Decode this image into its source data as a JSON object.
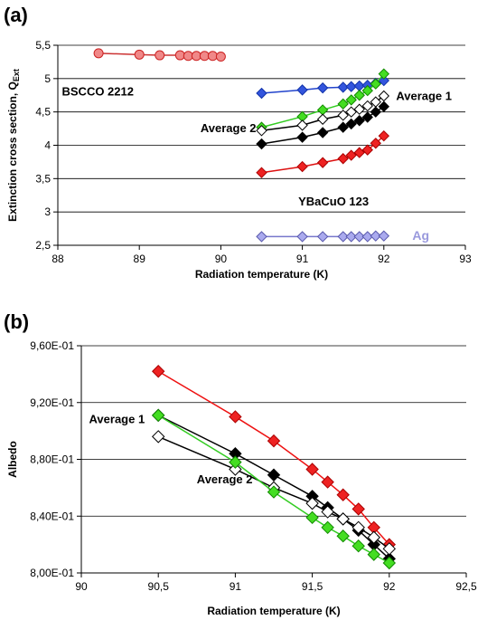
{
  "chart_data": [
    {
      "panel_label": "(a)",
      "type": "line",
      "xlabel": "Radiation temperature (K)",
      "ylabel": "Extinction cross section, Q",
      "ylabel_sub": "Ext",
      "xlim": [
        88,
        93
      ],
      "ylim": [
        2.5,
        5.5
      ],
      "xticks": [
        88,
        89,
        90,
        91,
        92,
        93
      ],
      "xtick_labels": [
        "88",
        "89",
        "90",
        "91",
        "92",
        "93"
      ],
      "yticks": [
        2.5,
        3,
        3.5,
        4,
        4.5,
        5,
        5.5
      ],
      "ytick_labels": [
        "2,5",
        "3",
        "3,5",
        "4",
        "4,5",
        "5",
        "5,5"
      ],
      "grid": "horizontal",
      "annotations": [
        {
          "text": "BSCCO 2212",
          "x": 88.05,
          "y": 4.75,
          "style": "annot"
        },
        {
          "text": "Average 1",
          "x": 92.15,
          "y": 4.68,
          "style": "annot"
        },
        {
          "text": "Average 2",
          "x": 89.75,
          "y": 4.2,
          "style": "annot"
        },
        {
          "text": "YBaCuO 123",
          "x": 90.95,
          "y": 3.1,
          "style": "annot"
        },
        {
          "text": "Ag",
          "x": 92.35,
          "y": 2.58,
          "style": "annot-ag"
        }
      ],
      "series": [
        {
          "marker": "circle",
          "fill": "#f08888",
          "stroke": "#cc2222",
          "line": "#cc3333",
          "x": [
            88.5,
            89.0,
            89.25,
            89.5,
            89.6,
            89.7,
            89.8,
            89.9,
            90.0
          ],
          "y": [
            5.38,
            5.36,
            5.35,
            5.35,
            5.34,
            5.34,
            5.34,
            5.34,
            5.33
          ]
        },
        {
          "marker": "diamond",
          "fill": "#3355dd",
          "stroke": "#1133aa",
          "line": "#2244cc",
          "x": [
            90.5,
            91.0,
            91.25,
            91.5,
            91.6,
            91.7,
            91.8,
            91.9,
            92.0
          ],
          "y": [
            4.78,
            4.83,
            4.86,
            4.87,
            4.88,
            4.89,
            4.9,
            4.93,
            4.97
          ]
        },
        {
          "marker": "diamond",
          "fill": "#44dd22",
          "stroke": "#118800",
          "line": "#33cc22",
          "x": [
            90.5,
            91.0,
            91.25,
            91.5,
            91.6,
            91.7,
            91.8,
            91.9,
            92.0
          ],
          "y": [
            4.27,
            4.43,
            4.53,
            4.62,
            4.68,
            4.75,
            4.82,
            4.92,
            5.07
          ]
        },
        {
          "marker": "diamond",
          "fill": "#ffffff",
          "stroke": "#000000",
          "line": "#000000",
          "x": [
            90.5,
            91.0,
            91.25,
            91.5,
            91.6,
            91.7,
            91.8,
            91.9,
            92.0
          ],
          "y": [
            4.22,
            4.3,
            4.39,
            4.45,
            4.5,
            4.54,
            4.59,
            4.65,
            4.74
          ]
        },
        {
          "marker": "diamond",
          "fill": "#000000",
          "stroke": "#000000",
          "line": "#000000",
          "x": [
            90.5,
            91.0,
            91.25,
            91.5,
            91.6,
            91.7,
            91.8,
            91.9,
            92.0
          ],
          "y": [
            4.02,
            4.12,
            4.19,
            4.27,
            4.32,
            4.37,
            4.42,
            4.5,
            4.58
          ]
        },
        {
          "marker": "diamond",
          "fill": "#ee2222",
          "stroke": "#aa0000",
          "line": "#dd1111",
          "x": [
            90.5,
            91.0,
            91.25,
            91.5,
            91.6,
            91.7,
            91.8,
            91.9,
            92.0
          ],
          "y": [
            3.59,
            3.68,
            3.74,
            3.8,
            3.85,
            3.89,
            3.93,
            4.03,
            4.14
          ]
        },
        {
          "marker": "diamond",
          "fill": "#aaaaee",
          "stroke": "#5555aa",
          "line": "#7777cc",
          "x": [
            90.5,
            91.0,
            91.25,
            91.5,
            91.6,
            91.7,
            91.8,
            91.9,
            92.0
          ],
          "y": [
            2.63,
            2.63,
            2.63,
            2.63,
            2.63,
            2.63,
            2.63,
            2.64,
            2.64
          ]
        }
      ]
    },
    {
      "panel_label": "(b)",
      "type": "line",
      "xlabel": "Radiation temperature (K)",
      "ylabel": "Albedo",
      "xlim": [
        90,
        92.5
      ],
      "ylim": [
        0.8,
        0.96
      ],
      "xticks": [
        90,
        90.5,
        91,
        91.5,
        92,
        92.5
      ],
      "xtick_labels": [
        "90",
        "90,5",
        "91",
        "91,5",
        "92",
        "92,5"
      ],
      "yticks": [
        0.8,
        0.84,
        0.88,
        0.92,
        0.96
      ],
      "ytick_labels": [
        "8,00E-01",
        "8,40E-01",
        "8,80E-01",
        "9,20E-01",
        "9,60E-01"
      ],
      "grid": "horizontal",
      "annotations": [
        {
          "text": "Average 1",
          "x": 90.05,
          "y": 0.9055,
          "style": "annot"
        },
        {
          "text": "Average 2",
          "x": 90.75,
          "y": 0.863,
          "style": "annot"
        }
      ],
      "series": [
        {
          "marker": "diamond",
          "fill": "#ee2222",
          "stroke": "#aa0000",
          "line": "#ee1111",
          "x": [
            90.5,
            91.0,
            91.25,
            91.5,
            91.6,
            91.7,
            91.8,
            91.9,
            92.0
          ],
          "y": [
            0.942,
            0.91,
            0.893,
            0.873,
            0.864,
            0.855,
            0.845,
            0.832,
            0.82
          ]
        },
        {
          "marker": "diamond",
          "fill": "#000000",
          "stroke": "#000000",
          "line": "#000000",
          "x": [
            90.5,
            91.0,
            91.25,
            91.5,
            91.6,
            91.7,
            91.8,
            91.9,
            92.0
          ],
          "y": [
            0.911,
            0.884,
            0.869,
            0.854,
            0.846,
            0.838,
            0.83,
            0.82,
            0.81
          ]
        },
        {
          "marker": "diamond",
          "fill": "#ffffff",
          "stroke": "#000000",
          "line": "#000000",
          "x": [
            90.5,
            91.0,
            91.25,
            91.5,
            91.6,
            91.7,
            91.8,
            91.9,
            92.0
          ],
          "y": [
            0.896,
            0.873,
            0.86,
            0.849,
            0.843,
            0.838,
            0.832,
            0.825,
            0.817
          ]
        },
        {
          "marker": "diamond",
          "fill": "#44dd22",
          "stroke": "#118800",
          "line": "#33cc22",
          "x": [
            90.5,
            91.0,
            91.25,
            91.5,
            91.6,
            91.7,
            91.8,
            91.9,
            92.0
          ],
          "y": [
            0.911,
            0.878,
            0.857,
            0.839,
            0.832,
            0.826,
            0.819,
            0.813,
            0.807
          ]
        }
      ]
    }
  ]
}
